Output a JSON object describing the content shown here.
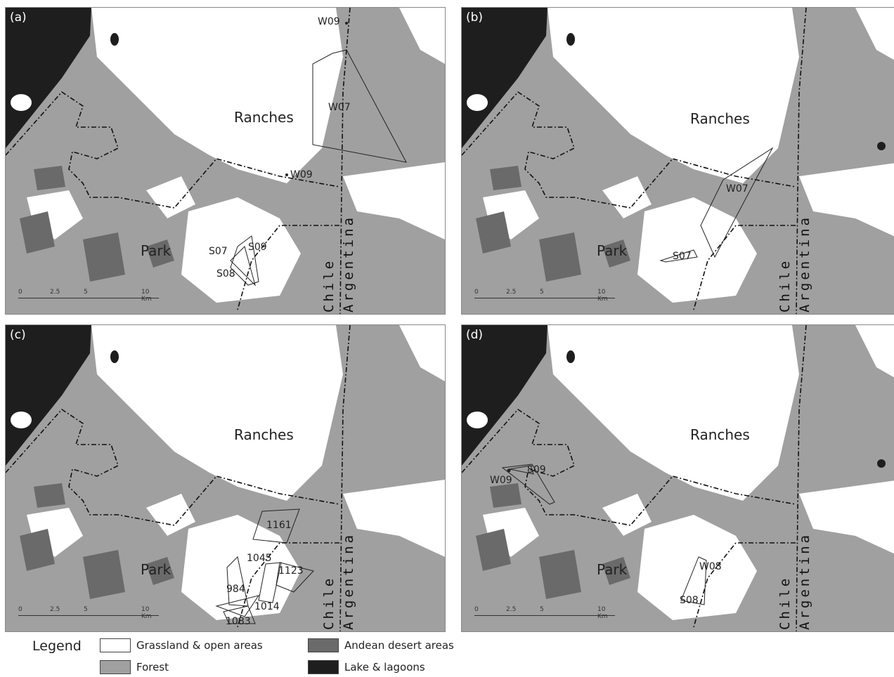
{
  "panels": [
    {
      "id": "(a)",
      "ranches": "Ranches",
      "park": "Park",
      "chile": "Chile",
      "argentina": "Argentina",
      "scale": [
        "0",
        "2.5",
        "5",
        "10 Km"
      ],
      "tags": [
        "W09",
        "W07",
        "W09",
        "S07",
        "S09",
        "S08"
      ]
    },
    {
      "id": "(b)",
      "ranches": "Ranches",
      "park": "Park",
      "chile": "Chile",
      "argentina": "Argentina",
      "scale": [
        "0",
        "2.5",
        "5",
        "10 Km"
      ],
      "tags": [
        "W07",
        "S07"
      ]
    },
    {
      "id": "(c)",
      "ranches": "Ranches",
      "park": "Park",
      "chile": "Chile",
      "argentina": "Argentina",
      "scale": [
        "0",
        "2.5",
        "5",
        "10 Km"
      ],
      "tags": [
        "1161",
        "1045",
        "1123",
        "984",
        "1014",
        "1083"
      ]
    },
    {
      "id": "(d)",
      "ranches": "Ranches",
      "park": "Park",
      "chile": "Chile",
      "argentina": "Argentina",
      "scale": [
        "0",
        "2.5",
        "5",
        "10 Km"
      ],
      "tags": [
        "S09",
        "W09",
        "W08",
        "S08"
      ]
    }
  ],
  "legend": {
    "title": "Legend",
    "items": [
      {
        "label": "Grassland & open areas",
        "color": "#ffffff"
      },
      {
        "label": "Forest",
        "color": "#a0a0a0"
      },
      {
        "label": "Andean desert areas",
        "color": "#6a6a6a"
      },
      {
        "label": "Lake & lagoons",
        "color": "#1e1e1e"
      }
    ]
  }
}
